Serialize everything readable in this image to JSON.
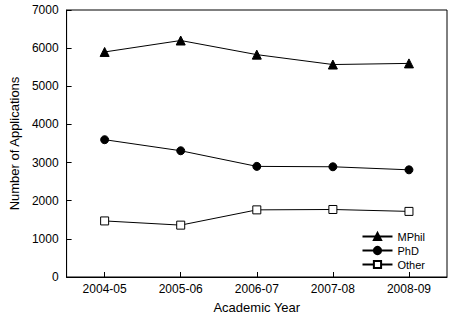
{
  "chart_data": {
    "type": "line",
    "x_label": "Academic Year",
    "y_label": "Number of Applications",
    "categories": [
      "2004-05",
      "2005-06",
      "2006-07",
      "2007-08",
      "2008-09"
    ],
    "series": [
      {
        "name": "MPhil",
        "color": "#000000",
        "marker": "triangle",
        "values": [
          5900,
          6200,
          5830,
          5570,
          5600
        ]
      },
      {
        "name": "PhD",
        "color": "#000000",
        "marker": "circle",
        "values": [
          3600,
          3310,
          2900,
          2890,
          2810
        ]
      },
      {
        "name": "Other",
        "color": "#000000",
        "marker": "square_open",
        "values": [
          1470,
          1360,
          1760,
          1770,
          1720
        ]
      }
    ],
    "ylim": [
      0,
      7000
    ],
    "yticks": [
      0,
      1000,
      2000,
      3000,
      4000,
      5000,
      6000,
      7000
    ],
    "grid": false,
    "legend": "lower right"
  }
}
